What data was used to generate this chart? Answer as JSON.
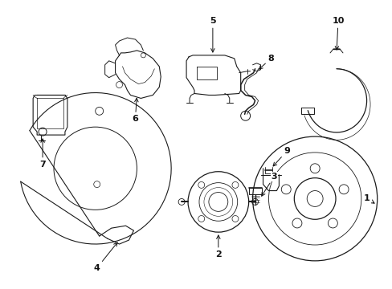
{
  "background_color": "#ffffff",
  "line_color": "#1a1a1a",
  "label_color": "#111111",
  "fig_width": 4.89,
  "fig_height": 3.6,
  "dpi": 100
}
